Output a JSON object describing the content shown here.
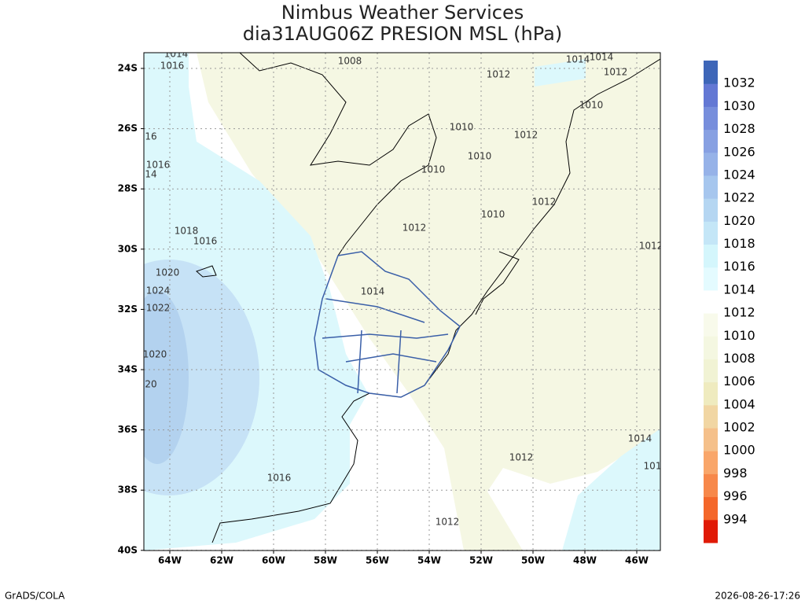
{
  "header": {
    "title": "Nimbus Weather Services",
    "subtitle": "dia31AUG06Z PRESION MSL (hPa)"
  },
  "map": {
    "lon_labels": [
      "64W",
      "62W",
      "60W",
      "58W",
      "56W",
      "54W",
      "52W",
      "50W",
      "48W",
      "46W"
    ],
    "lat_labels": [
      "24S",
      "26S",
      "28S",
      "30S",
      "32S",
      "34S",
      "36S",
      "38S",
      "40S"
    ],
    "contour_labels": [
      "1014",
      "1016",
      "1008",
      "1014",
      "1014",
      "1012",
      "1012",
      "1010",
      "1010",
      "1012",
      "16",
      "1010",
      "1016",
      "14",
      "1010",
      "1012",
      "1010",
      "1012",
      "1018",
      "1016",
      "1012",
      "1020",
      "1014",
      "1024",
      "1022",
      "1020",
      "20",
      "1014",
      "1012",
      "101",
      "1016",
      "1012"
    ]
  },
  "colorbar": {
    "levels": [
      994,
      996,
      998,
      1000,
      1002,
      1004,
      1006,
      1008,
      1010,
      1012,
      1014,
      1016,
      1018,
      1020,
      1022,
      1024,
      1026,
      1028,
      1030,
      1032
    ],
    "colors": [
      "#e01a06",
      "#f4672a",
      "#f7884a",
      "#f9a66a",
      "#f5c08a",
      "#f1d6a3",
      "#efebbf",
      "#f1f3d4",
      "#f4f7e1",
      "#f8faeb",
      "#ffffff",
      "#e4fbff",
      "#d4f6fc",
      "#c4e6f7",
      "#b5d6f2",
      "#a6c6ee",
      "#96b2e8",
      "#87a0e2",
      "#778edc",
      "#6378d4",
      "#3e66b8"
    ]
  },
  "footer": {
    "left": "GrADS/COLA",
    "right": "2026-08-26-17:26"
  }
}
